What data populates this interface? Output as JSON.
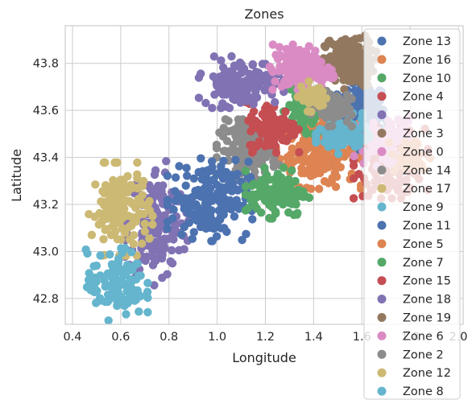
{
  "chart_data": {
    "type": "scatter",
    "title": "Zones",
    "xlabel": "Longitude",
    "ylabel": "Latitude",
    "xlim": [
      0.37,
      2.02
    ],
    "ylim": [
      42.69,
      43.96
    ],
    "xticks": [
      "0.4",
      "0.6",
      "0.8",
      "1.0",
      "1.2",
      "1.4",
      "1.6",
      "1.8",
      "2.0"
    ],
    "yticks": [
      "42.8",
      "43.0",
      "43.2",
      "43.4",
      "43.6",
      "43.8"
    ],
    "grid": true,
    "legend_position": "right",
    "series": [
      {
        "name": "Zone 13",
        "color": "#4c72b0",
        "center": [
          1.6,
          43.58
        ],
        "spread": [
          0.05,
          0.07
        ],
        "count": 170
      },
      {
        "name": "Zone 16",
        "color": "#dd8452",
        "center": [
          1.42,
          43.42
        ],
        "spread": [
          0.08,
          0.07
        ],
        "count": 180
      },
      {
        "name": "Zone 10",
        "color": "#55a868",
        "center": [
          1.36,
          43.6
        ],
        "spread": [
          0.04,
          0.06
        ],
        "count": 90
      },
      {
        "name": "Zone 4",
        "color": "#c44e52",
        "center": [
          1.72,
          43.38
        ],
        "spread": [
          0.07,
          0.07
        ],
        "count": 150
      },
      {
        "name": "Zone 1",
        "color": "#8172b3",
        "center": [
          0.75,
          43.12
        ],
        "spread": [
          0.06,
          0.12
        ],
        "count": 170
      },
      {
        "name": "Zone 3",
        "color": "#937860",
        "center": [
          1.55,
          43.8
        ],
        "spread": [
          0.05,
          0.05
        ],
        "count": 120
      },
      {
        "name": "Zone 0",
        "color": "#da8bc3",
        "center": [
          1.7,
          43.47
        ],
        "spread": [
          0.06,
          0.05
        ],
        "count": 90
      },
      {
        "name": "Zone 14",
        "color": "#8c8c8c",
        "center": [
          1.13,
          43.43
        ],
        "spread": [
          0.06,
          0.06
        ],
        "count": 150
      },
      {
        "name": "Zone 17",
        "color": "#ccb974",
        "center": [
          0.6,
          43.18
        ],
        "spread": [
          0.06,
          0.09
        ],
        "count": 150
      },
      {
        "name": "Zone 9",
        "color": "#64b5cd",
        "center": [
          1.52,
          43.5
        ],
        "spread": [
          0.05,
          0.04
        ],
        "count": 110
      },
      {
        "name": "Zone 11",
        "color": "#4c72b0",
        "center": [
          0.97,
          43.22
        ],
        "spread": [
          0.08,
          0.08
        ],
        "count": 190
      },
      {
        "name": "Zone 5",
        "color": "#dd8452",
        "center": [
          1.8,
          43.4
        ],
        "spread": [
          0.04,
          0.04
        ],
        "count": 40
      },
      {
        "name": "Zone 7",
        "color": "#55a868",
        "center": [
          1.25,
          43.25
        ],
        "spread": [
          0.06,
          0.05
        ],
        "count": 120
      },
      {
        "name": "Zone 15",
        "color": "#c44e52",
        "center": [
          1.23,
          43.53
        ],
        "spread": [
          0.05,
          0.05
        ],
        "count": 110
      },
      {
        "name": "Zone 18",
        "color": "#8172b3",
        "center": [
          1.1,
          43.72
        ],
        "spread": [
          0.08,
          0.05
        ],
        "count": 140
      },
      {
        "name": "Zone 19",
        "color": "#937860",
        "center": [
          1.55,
          43.83
        ],
        "spread": [
          0.04,
          0.04
        ],
        "count": 50
      },
      {
        "name": "Zone 6",
        "color": "#da8bc3",
        "center": [
          1.35,
          43.77
        ],
        "spread": [
          0.06,
          0.05
        ],
        "count": 130
      },
      {
        "name": "Zone 2",
        "color": "#8c8c8c",
        "center": [
          1.47,
          43.62
        ],
        "spread": [
          0.04,
          0.04
        ],
        "count": 70
      },
      {
        "name": "Zone 12",
        "color": "#ccb974",
        "center": [
          1.4,
          43.66
        ],
        "spread": [
          0.03,
          0.03
        ],
        "count": 40
      },
      {
        "name": "Zone 8",
        "color": "#64b5cd",
        "center": [
          0.58,
          42.86
        ],
        "spread": [
          0.06,
          0.07
        ],
        "count": 110
      }
    ]
  }
}
